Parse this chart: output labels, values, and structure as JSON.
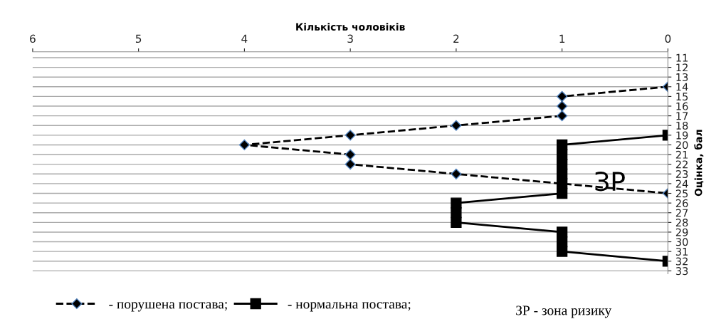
{
  "chart_data": {
    "type": "line",
    "orientation": "horizontal",
    "xlabel": "Кількість чоловіків",
    "ylabel": "Оцінка, бал",
    "categories": [
      "11",
      "12",
      "13",
      "14",
      "15",
      "16",
      "17",
      "18",
      "19",
      "20",
      "21",
      "22",
      "23",
      "24",
      "25",
      "26",
      "27",
      "28",
      "29",
      "30",
      "31",
      "32",
      "33"
    ],
    "series": [
      {
        "name": "- порушена постава;",
        "color": "#000000",
        "marker": "diamond",
        "line_style": "dashed",
        "values": [
          null,
          null,
          null,
          0,
          1,
          1,
          1,
          2,
          3,
          4,
          3,
          3,
          2,
          1,
          0,
          null,
          null,
          null,
          null,
          null,
          null,
          null,
          null
        ]
      },
      {
        "name": "- нормальна постава;",
        "color": "#000000",
        "marker": "square",
        "line_style": "solid",
        "values": [
          null,
          null,
          null,
          null,
          null,
          null,
          null,
          null,
          0,
          1,
          1,
          1,
          1,
          1,
          1,
          2,
          2,
          2,
          1,
          1,
          1,
          0,
          null
        ]
      }
    ],
    "xlim": [
      6,
      0
    ],
    "xticks": [
      0,
      1,
      2,
      3,
      4,
      5,
      6
    ],
    "grid": "y",
    "legend": "bottom",
    "annotations": [
      {
        "text": "ЗР",
        "x": 0.55,
        "y": "24"
      },
      "ЗР - зона ризику"
    ]
  }
}
